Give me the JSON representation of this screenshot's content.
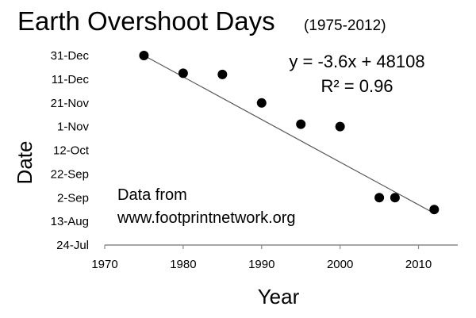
{
  "chart_data": {
    "type": "scatter",
    "title": "Earth Overshoot Days",
    "subtitle": "(1975-2012)",
    "xlabel": "Year",
    "ylabel": "Date",
    "xlim": [
      1970,
      2015
    ],
    "ylim": [
      "24-Jul",
      "31-Dec"
    ],
    "x_ticks": [
      1970,
      1980,
      1990,
      2000,
      2010
    ],
    "y_ticks": [
      "31-Dec",
      "11-Dec",
      "21-Nov",
      "1-Nov",
      "12-Oct",
      "22-Sep",
      "2-Sep",
      "13-Aug",
      "24-Jul"
    ],
    "grid": false,
    "legend": "none",
    "points": [
      {
        "x": 1975,
        "y": "31-Dec"
      },
      {
        "x": 1980,
        "y": "16-Dec"
      },
      {
        "x": 1985,
        "y": "15-Dec"
      },
      {
        "x": 1990,
        "y": "21-Nov"
      },
      {
        "x": 1995,
        "y": "3-Nov"
      },
      {
        "x": 2000,
        "y": "1-Nov"
      },
      {
        "x": 2005,
        "y": "2-Sep"
      },
      {
        "x": 2007,
        "y": "2-Sep"
      },
      {
        "x": 2012,
        "y": "23-Aug"
      }
    ],
    "trendline": {
      "type": "linear",
      "slope": -3.6,
      "intercept": 48108,
      "equation_label": "y = -3.6x + 48108",
      "r2_label": "R² = 0.96"
    },
    "annotation_lines": [
      "Data from",
      "www.footprintnetwork.org"
    ],
    "colors": {
      "marker": "#000000",
      "trendline": "#555555",
      "axis": "#8a8a8a",
      "text": "#000000"
    }
  }
}
